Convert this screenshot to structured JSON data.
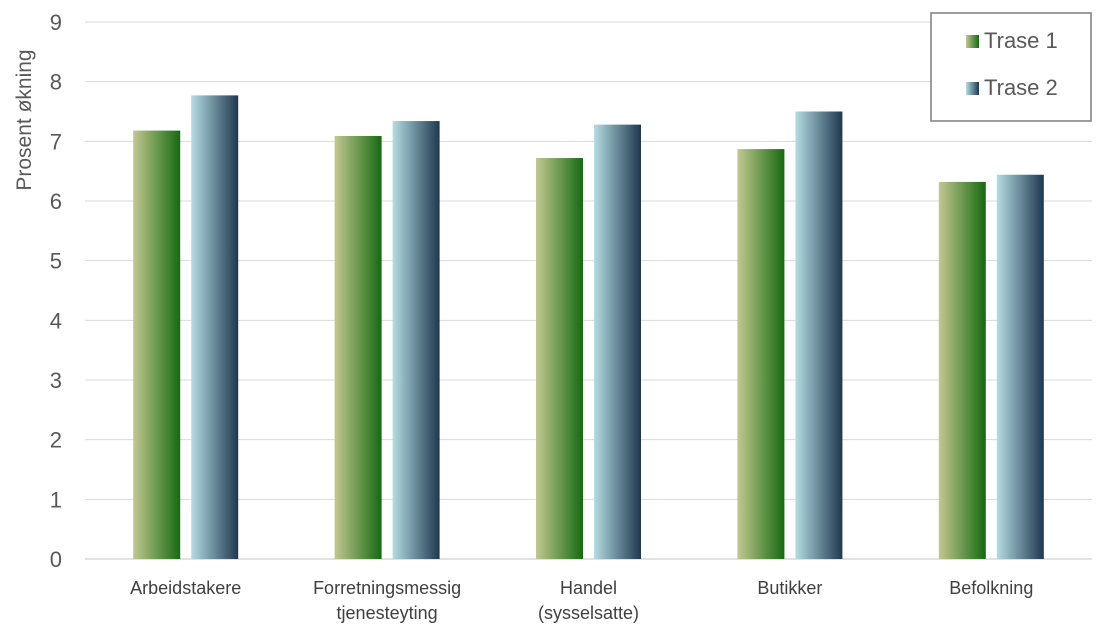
{
  "chart_data": {
    "type": "bar",
    "title": "",
    "xlabel": "",
    "ylabel": "Prosent økning",
    "ylim": [
      0,
      9
    ],
    "yticks": [
      0,
      1,
      2,
      3,
      4,
      5,
      6,
      7,
      8,
      9
    ],
    "grid": true,
    "legend_position": "top-right",
    "categories": [
      [
        "Arbeidstakere"
      ],
      [
        "Forretningsmessig",
        "tjenesteyting"
      ],
      [
        "Handel",
        "(sysselsatte)"
      ],
      [
        "Butikker"
      ],
      [
        "Befolkning"
      ]
    ],
    "series": [
      {
        "name": "Trase 1",
        "values": [
          7.18,
          7.09,
          6.72,
          6.87,
          6.32
        ],
        "gradient": [
          "#c2c890",
          "#166a10"
        ]
      },
      {
        "name": "Trase 2",
        "values": [
          7.77,
          7.34,
          7.28,
          7.5,
          6.44
        ],
        "gradient": [
          "#b4dce2",
          "#1e3850"
        ]
      }
    ]
  }
}
